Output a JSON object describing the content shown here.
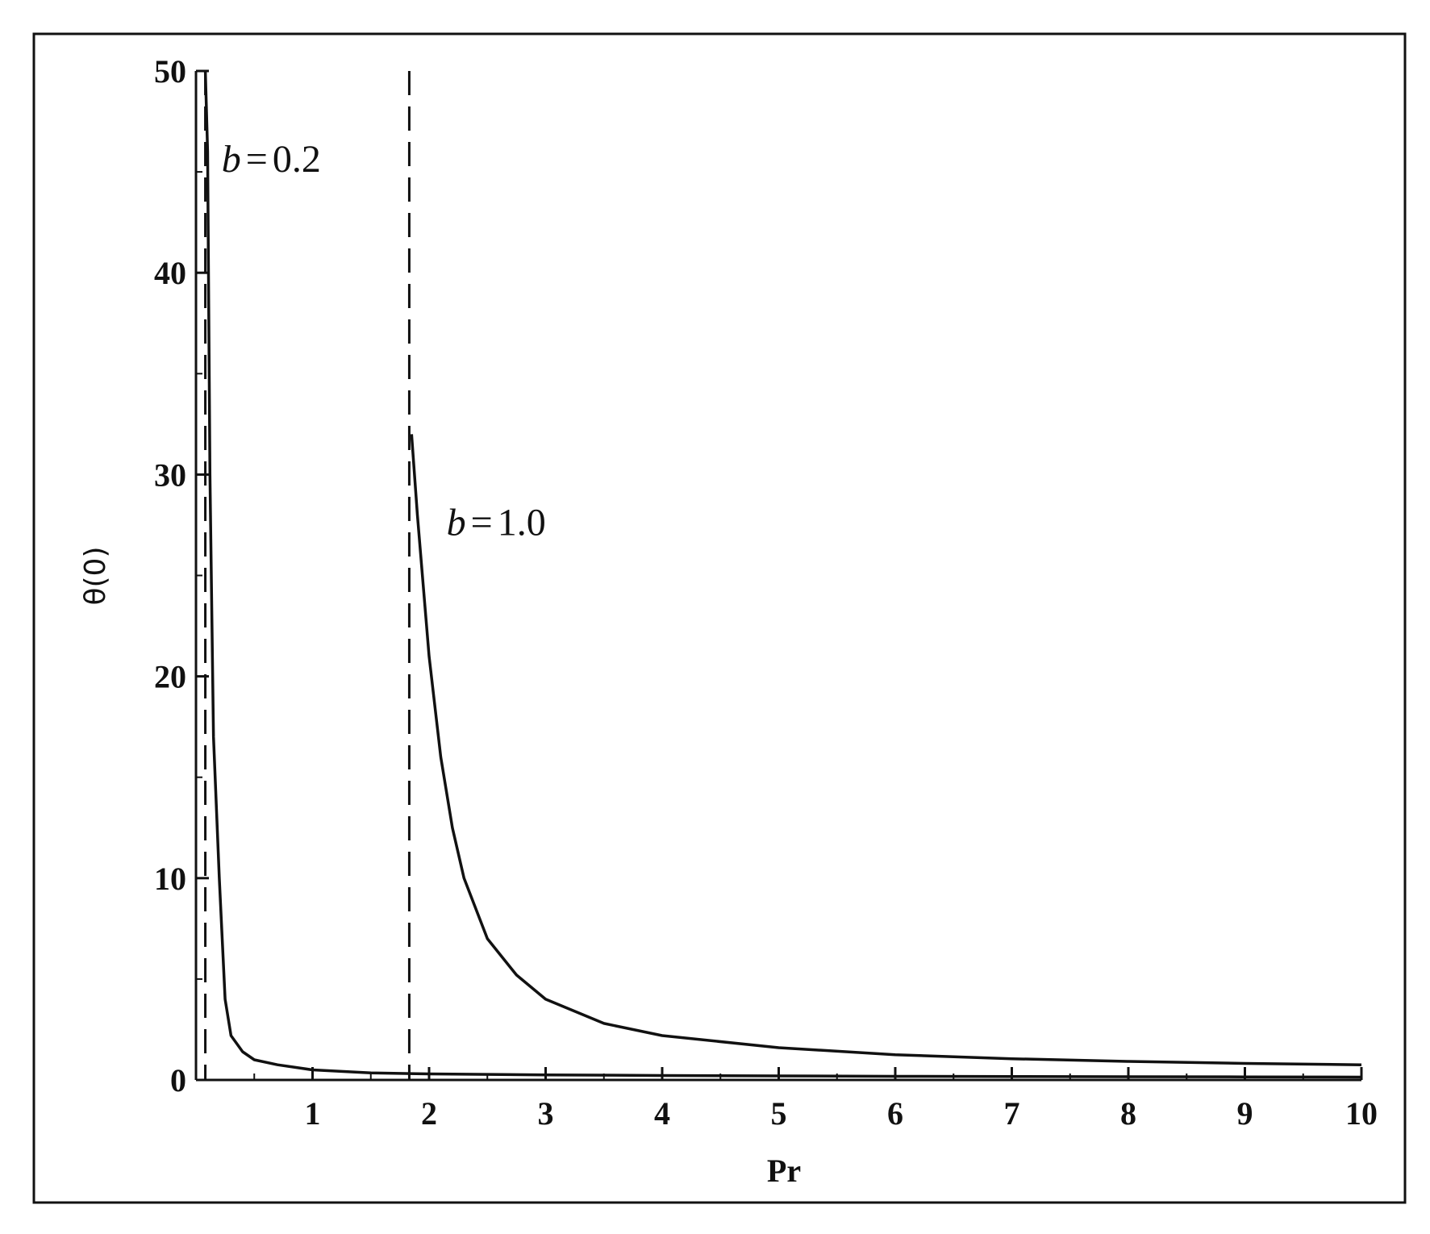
{
  "chart_data": {
    "type": "line",
    "title": "",
    "xlabel": "Pr",
    "ylabel": "θ(0)",
    "xlim": [
      0,
      10
    ],
    "ylim": [
      0,
      50
    ],
    "x_ticks": [
      1,
      2,
      3,
      4,
      5,
      6,
      7,
      8,
      9,
      10
    ],
    "x_tick_labels": [
      "1",
      "2",
      "3",
      "4",
      "5",
      "6",
      "7",
      "8",
      "9",
      "10"
    ],
    "y_ticks": [
      0,
      10,
      20,
      30,
      40,
      50
    ],
    "y_tick_labels": [
      "0",
      "10",
      "20",
      "30",
      "40",
      "50"
    ],
    "x_minor_step": 0.5,
    "y_minor_step": 5,
    "grid": false,
    "legend": "none",
    "asymptotes": [
      0.08,
      1.83
    ],
    "series": [
      {
        "x": [
          0.08,
          0.1,
          0.12,
          0.15,
          0.2,
          0.25,
          0.3,
          0.4,
          0.5,
          0.7,
          1.0,
          1.5,
          2.0,
          3.0,
          4.0,
          5.0,
          6.0,
          7.0,
          8.0,
          9.0,
          10.0
        ],
        "y": [
          50,
          46,
          30,
          17,
          10,
          4,
          2.2,
          1.4,
          1.0,
          0.75,
          0.5,
          0.35,
          0.3,
          0.25,
          0.22,
          0.2,
          0.18,
          0.17,
          0.16,
          0.15,
          0.14
        ]
      },
      {
        "x": [
          1.85,
          1.9,
          2.0,
          2.1,
          2.2,
          2.3,
          2.5,
          2.75,
          3.0,
          3.5,
          4.0,
          5.0,
          6.0,
          7.0,
          8.0,
          9.0,
          10.0
        ],
        "y": [
          32,
          28,
          21,
          16,
          12.5,
          10,
          7,
          5.2,
          4.0,
          2.8,
          2.2,
          1.6,
          1.25,
          1.05,
          0.92,
          0.82,
          0.75
        ]
      }
    ],
    "annotations": [
      {
        "var": "b",
        "op": "=",
        "value": "0.2",
        "x": 0.22,
        "y": 45
      },
      {
        "var": "b",
        "op": "=",
        "value": "1.0",
        "x": 2.15,
        "y": 27
      }
    ]
  }
}
